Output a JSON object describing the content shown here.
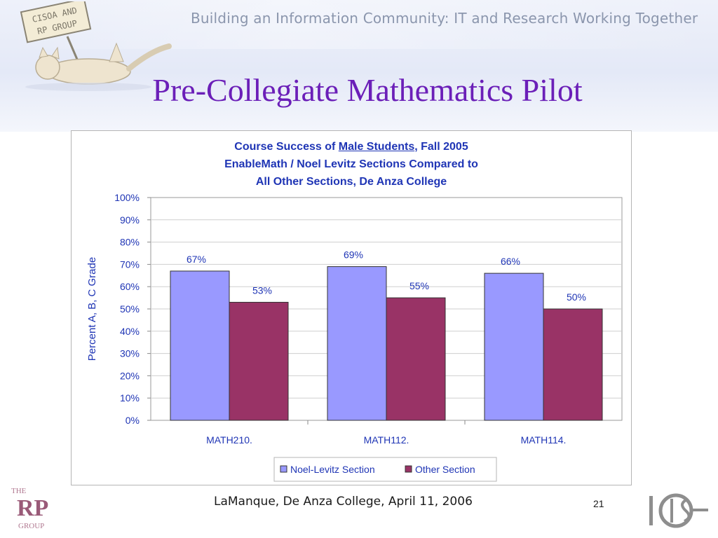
{
  "banner": {
    "tagline": "Building an Information Community:  IT and Research Working Together",
    "mascot_sign": [
      "CISOA AND",
      "RP GROUP"
    ]
  },
  "slide": {
    "title": "Pre-Collegiate Mathematics Pilot",
    "footer": "LaManque, De Anza College, April 11, 2006",
    "page_number": "21"
  },
  "logos": {
    "rp_group": [
      "THE",
      "RP",
      "GROUP"
    ],
    "cisoa": "CISOA"
  },
  "colors": {
    "title": "#6b1fb8",
    "chart_text": "#1f35b5",
    "noel_levitz": "#9999ff",
    "other": "#993366"
  },
  "chart_data": {
    "type": "bar",
    "title_lines": [
      [
        "Course Success of ",
        "Male Students",
        ", Fall 2005"
      ],
      "EnableMath / Noel Levitz Sections Compared to",
      "All Other Sections, De Anza College"
    ],
    "ylabel": "Percent A, B, C Grade",
    "xlabel": "",
    "ylim": [
      0,
      100
    ],
    "yticks": [
      "0%",
      "10%",
      "20%",
      "30%",
      "40%",
      "50%",
      "60%",
      "70%",
      "80%",
      "90%",
      "100%"
    ],
    "categories": [
      "MATH210.",
      "MATH112.",
      "MATH114."
    ],
    "series": [
      {
        "name": "Noel-Levitz Section",
        "values": [
          67,
          69,
          66
        ],
        "labels": [
          "67%",
          "69%",
          "66%"
        ],
        "color": "#9999ff"
      },
      {
        "name": "Other Section",
        "values": [
          53,
          55,
          50
        ],
        "labels": [
          "53%",
          "55%",
          "50%"
        ],
        "color": "#993366"
      }
    ],
    "grid": true,
    "legend": "bottom-center"
  }
}
